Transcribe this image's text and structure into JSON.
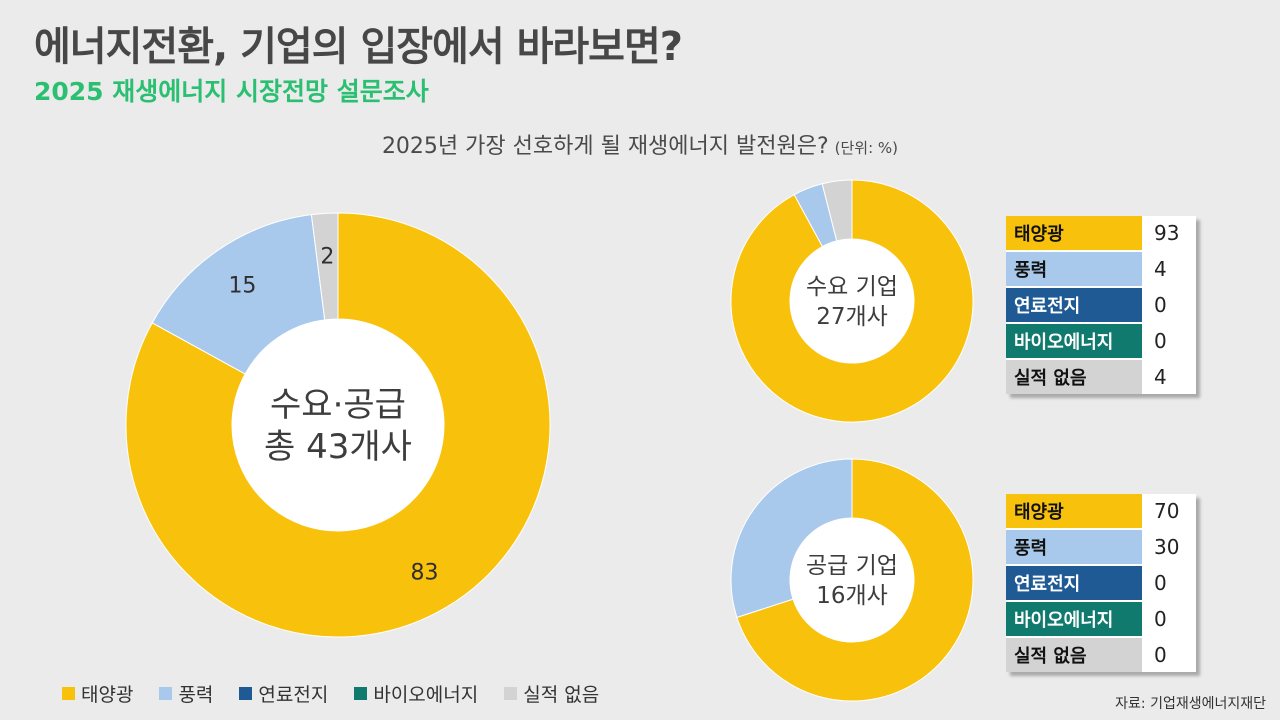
{
  "header": {
    "title": "에너지전환, 기업의 입장에서 바라보면?",
    "subtitle": "2025 재생에너지 시장전망 설문조사"
  },
  "question": {
    "text": "2025년 가장 선호하게 될 재생에너지 발전원은?",
    "unit": "(단위: %)"
  },
  "colors": {
    "solar": "#f8c10c",
    "wind": "#a9c9ec",
    "fuelcell": "#1f5a94",
    "bio": "#117a6e",
    "none": "#d3d3d3",
    "label_text_light": "#ffffff",
    "label_text_dark": "#111111"
  },
  "chart_data": [
    {
      "type": "pie",
      "center_label": [
        "수요·공급",
        "총 43개사"
      ],
      "categories": [
        "태양광",
        "풍력",
        "연료전지",
        "바이오에너지",
        "실적 없음"
      ],
      "values": [
        83,
        15,
        0,
        0,
        2
      ],
      "data_labels": [
        "83",
        "15",
        "",
        "",
        "2"
      ]
    },
    {
      "type": "pie",
      "center_label": [
        "수요 기업",
        "27개사"
      ],
      "categories": [
        "태양광",
        "풍력",
        "연료전지",
        "바이오에너지",
        "실적 없음"
      ],
      "values": [
        93,
        4,
        0,
        0,
        4
      ]
    },
    {
      "type": "pie",
      "center_label": [
        "공급 기업",
        "16개사"
      ],
      "categories": [
        "태양광",
        "풍력",
        "연료전지",
        "바이오에너지",
        "실적 없음"
      ],
      "values": [
        70,
        30,
        0,
        0,
        0
      ]
    }
  ],
  "tables": [
    {
      "rows": [
        {
          "label": "태양광",
          "value": "93"
        },
        {
          "label": "풍력",
          "value": "4"
        },
        {
          "label": "연료전지",
          "value": "0"
        },
        {
          "label": "바이오에너지",
          "value": "0"
        },
        {
          "label": "실적 없음",
          "value": "4"
        }
      ]
    },
    {
      "rows": [
        {
          "label": "태양광",
          "value": "70"
        },
        {
          "label": "풍력",
          "value": "30"
        },
        {
          "label": "연료전지",
          "value": "0"
        },
        {
          "label": "바이오에너지",
          "value": "0"
        },
        {
          "label": "실적 없음",
          "value": "0"
        }
      ]
    }
  ],
  "legend": [
    "태양광",
    "풍력",
    "연료전지",
    "바이오에너지",
    "실적 없음"
  ],
  "source": "자료: 기업재생에너지재단"
}
